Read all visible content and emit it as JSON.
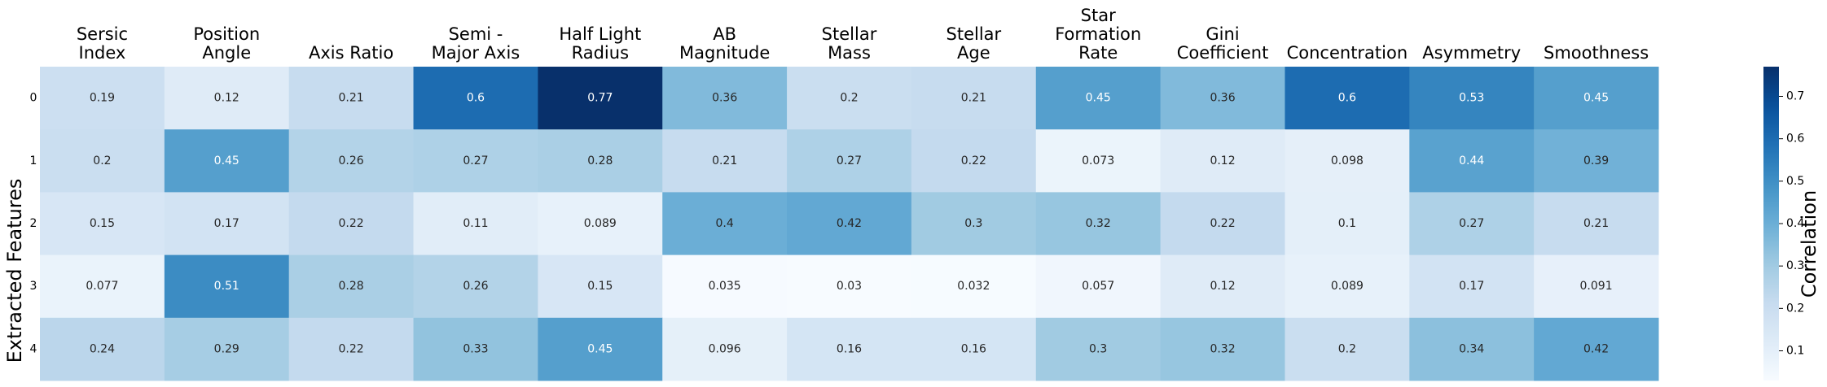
{
  "chart_data": {
    "type": "heatmap",
    "ylabel": "Extracted Features",
    "colorbar_label": "Correlation",
    "colormap": "Blues",
    "vmin": 0.03,
    "vmax": 0.77,
    "colorbar_ticks": [
      "0.1",
      "0.2",
      "0.3",
      "0.4",
      "0.5",
      "0.6",
      "0.7"
    ],
    "columns": [
      [
        "Sersic",
        "Index"
      ],
      [
        "Position",
        "Angle"
      ],
      [
        "Axis Ratio"
      ],
      [
        "Semi -",
        "Major Axis"
      ],
      [
        "Half Light",
        "Radius"
      ],
      [
        "AB",
        "Magnitude"
      ],
      [
        "Stellar",
        "Mass"
      ],
      [
        "Stellar",
        "Age"
      ],
      [
        "Star",
        "Formation",
        "Rate"
      ],
      [
        "Gini",
        "Coefficient"
      ],
      [
        "Concentration"
      ],
      [
        "Asymmetry"
      ],
      [
        "Smoothness"
      ]
    ],
    "rows": [
      "0",
      "1",
      "2",
      "3",
      "4"
    ],
    "values": [
      [
        "0.19",
        "0.12",
        "0.21",
        "0.6",
        "0.77",
        "0.36",
        "0.2",
        "0.21",
        "0.45",
        "0.36",
        "0.6",
        "0.53",
        "0.45"
      ],
      [
        "0.2",
        "0.45",
        "0.26",
        "0.27",
        "0.28",
        "0.21",
        "0.27",
        "0.22",
        "0.073",
        "0.12",
        "0.098",
        "0.44",
        "0.39"
      ],
      [
        "0.15",
        "0.17",
        "0.22",
        "0.11",
        "0.089",
        "0.4",
        "0.42",
        "0.3",
        "0.32",
        "0.22",
        "0.1",
        "0.27",
        "0.21"
      ],
      [
        "0.077",
        "0.51",
        "0.28",
        "0.26",
        "0.15",
        "0.035",
        "0.03",
        "0.032",
        "0.057",
        "0.12",
        "0.089",
        "0.17",
        "0.091"
      ],
      [
        "0.24",
        "0.29",
        "0.22",
        "0.33",
        "0.45",
        "0.096",
        "0.16",
        "0.16",
        "0.3",
        "0.32",
        "0.2",
        "0.34",
        "0.42"
      ]
    ]
  }
}
